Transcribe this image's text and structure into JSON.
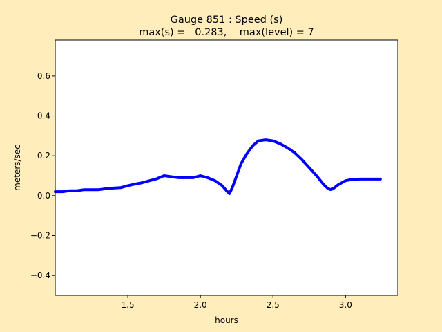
{
  "chart_data": {
    "type": "line",
    "title": "Gauge 851 : Speed (s)",
    "subtitle": "max(s) =   0.283,    max(level) = 7",
    "xlabel": "hours",
    "ylabel": "meters/sec",
    "xlim": [
      1.0,
      3.36
    ],
    "ylim": [
      -0.5,
      0.78
    ],
    "xticks": [
      1.5,
      2.0,
      2.5,
      3.0
    ],
    "xtick_labels": [
      "1.5",
      "2.0",
      "2.5",
      "3.0"
    ],
    "yticks": [
      -0.4,
      -0.2,
      0.0,
      0.2,
      0.4,
      0.6
    ],
    "ytick_labels": [
      "−0.4",
      "−0.2",
      "0.0",
      "0.2",
      "0.4",
      "0.6"
    ],
    "grid": false,
    "series": [
      {
        "color": "#0000ff",
        "x": [
          1.0,
          1.05,
          1.1,
          1.15,
          1.2,
          1.25,
          1.3,
          1.35,
          1.4,
          1.45,
          1.5,
          1.55,
          1.6,
          1.65,
          1.7,
          1.75,
          1.8,
          1.85,
          1.9,
          1.95,
          2.0,
          2.05,
          2.1,
          2.15,
          2.18,
          2.2,
          2.22,
          2.25,
          2.28,
          2.32,
          2.36,
          2.4,
          2.45,
          2.5,
          2.55,
          2.6,
          2.65,
          2.7,
          2.75,
          2.8,
          2.85,
          2.88,
          2.9,
          2.92,
          2.95,
          3.0,
          3.05,
          3.1,
          3.15,
          3.2,
          3.24
        ],
        "y": [
          0.02,
          0.02,
          0.025,
          0.025,
          0.03,
          0.03,
          0.03,
          0.035,
          0.038,
          0.04,
          0.05,
          0.058,
          0.065,
          0.075,
          0.085,
          0.1,
          0.095,
          0.09,
          0.09,
          0.09,
          0.1,
          0.09,
          0.075,
          0.05,
          0.025,
          0.01,
          0.04,
          0.1,
          0.16,
          0.21,
          0.25,
          0.275,
          0.28,
          0.275,
          0.26,
          0.24,
          0.215,
          0.18,
          0.14,
          0.1,
          0.055,
          0.035,
          0.03,
          0.038,
          0.055,
          0.075,
          0.082,
          0.083,
          0.083,
          0.083,
          0.083
        ]
      }
    ]
  }
}
